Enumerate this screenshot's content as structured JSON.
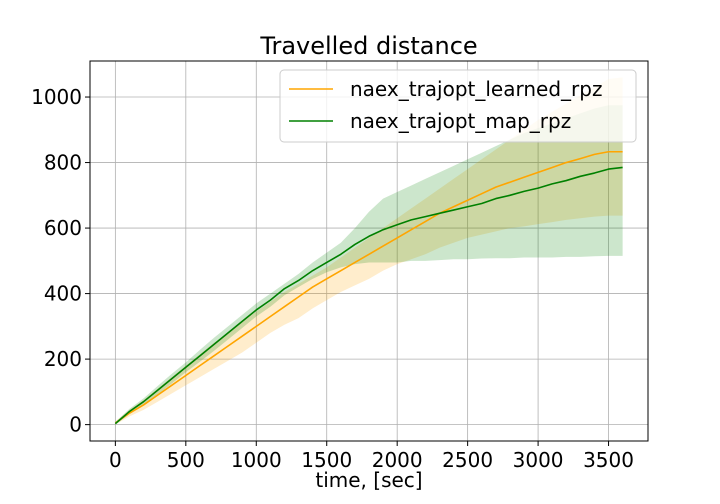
{
  "chart_data": {
    "type": "line",
    "title": "Travelled distance",
    "xlabel": "time, [sec]",
    "ylabel": "",
    "xlim": [
      -180,
      3780
    ],
    "ylim": [
      -50,
      1110
    ],
    "xticks": [
      0,
      500,
      1000,
      1500,
      2000,
      2500,
      3000,
      3500
    ],
    "yticks": [
      0,
      200,
      400,
      600,
      800,
      1000
    ],
    "grid": true,
    "legend_position": "upper-right",
    "x": [
      0,
      100,
      200,
      300,
      400,
      500,
      600,
      700,
      800,
      900,
      1000,
      1100,
      1200,
      1300,
      1400,
      1500,
      1600,
      1700,
      1800,
      1900,
      2000,
      2100,
      2200,
      2300,
      2400,
      2500,
      2600,
      2700,
      2800,
      2900,
      3000,
      3100,
      3200,
      3300,
      3400,
      3500,
      3600
    ],
    "series": [
      {
        "name": "naex_trajopt_learned_rpz",
        "color": "#ffa500",
        "values": [
          5,
          35,
          60,
          90,
          120,
          150,
          180,
          210,
          240,
          270,
          300,
          330,
          360,
          390,
          420,
          445,
          470,
          495,
          520,
          545,
          570,
          595,
          620,
          645,
          665,
          685,
          705,
          725,
          740,
          755,
          770,
          785,
          800,
          812,
          825,
          833,
          833
        ],
        "band_upper": [
          10,
          45,
          75,
          110,
          145,
          180,
          215,
          250,
          280,
          315,
          345,
          375,
          405,
          430,
          455,
          480,
          510,
          540,
          570,
          600,
          630,
          660,
          690,
          720,
          750,
          780,
          810,
          840,
          870,
          900,
          930,
          955,
          980,
          1005,
          1030,
          1055,
          1060
        ],
        "band_lower": [
          0,
          25,
          45,
          70,
          95,
          120,
          145,
          170,
          195,
          220,
          250,
          280,
          305,
          325,
          355,
          380,
          405,
          425,
          445,
          470,
          490,
          505,
          520,
          540,
          555,
          570,
          580,
          590,
          600,
          605,
          612,
          618,
          625,
          630,
          635,
          638,
          638
        ]
      },
      {
        "name": "naex_trajopt_map_rpz",
        "color": "#008000",
        "values": [
          3,
          40,
          70,
          105,
          140,
          175,
          210,
          245,
          280,
          315,
          350,
          380,
          415,
          440,
          470,
          495,
          520,
          550,
          575,
          595,
          610,
          625,
          635,
          645,
          655,
          665,
          675,
          690,
          700,
          712,
          722,
          735,
          745,
          758,
          768,
          780,
          785
        ],
        "band_upper": [
          8,
          48,
          80,
          118,
          155,
          190,
          228,
          265,
          300,
          335,
          370,
          400,
          430,
          460,
          495,
          525,
          555,
          600,
          650,
          690,
          710,
          730,
          750,
          770,
          790,
          810,
          830,
          850,
          870,
          890,
          905,
          920,
          935,
          950,
          965,
          975,
          975
        ],
        "band_lower": [
          0,
          32,
          60,
          92,
          125,
          160,
          192,
          225,
          260,
          295,
          330,
          360,
          395,
          420,
          445,
          465,
          480,
          490,
          495,
          495,
          495,
          500,
          500,
          502,
          505,
          505,
          507,
          508,
          508,
          510,
          510,
          510,
          512,
          512,
          514,
          515,
          515
        ]
      }
    ]
  }
}
